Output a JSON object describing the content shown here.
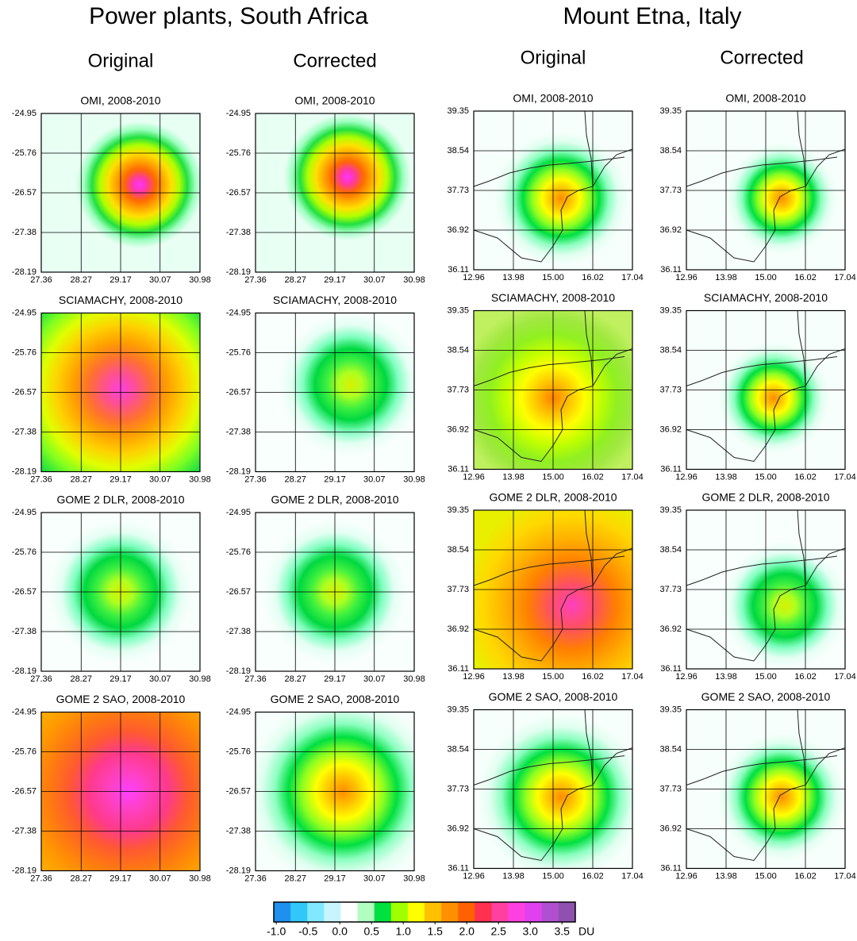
{
  "groups": [
    {
      "title": "Power plants, South Africa",
      "yticks": [
        -24.95,
        -25.76,
        -26.57,
        -27.38,
        -28.19
      ],
      "xticks": [
        27.36,
        28.27,
        29.17,
        30.07,
        30.98
      ],
      "columns": [
        {
          "heading": "Original",
          "panels": [
            "OMI, 2008-2010",
            "SCIAMACHY, 2008-2010",
            "GOME 2 DLR, 2008-2010",
            "GOME 2 SAO, 2008-2010"
          ]
        },
        {
          "heading": "Corrected",
          "panels": [
            "OMI, 2008-2010",
            "SCIAMACHY, 2008-2010",
            "GOME 2 DLR, 2008-2010",
            "GOME 2 SAO, 2008-2010"
          ]
        }
      ]
    },
    {
      "title": "Mount Etna, Italy",
      "yticks": [
        39.35,
        38.54,
        37.73,
        36.92,
        36.11
      ],
      "xticks": [
        12.96,
        13.98,
        {
          "value": 15,
          "label": "15.00"
        },
        16.02,
        17.04
      ],
      "columns": [
        {
          "heading": "Original",
          "panels": [
            "OMI, 2008-2010",
            "SCIAMACHY, 2008-2010",
            "GOME 2 DLR, 2008-2010",
            "GOME 2 SAO, 2008-2010"
          ]
        },
        {
          "heading": "Corrected",
          "panels": [
            "OMI, 2008-2010",
            "SCIAMACHY, 2008-2010",
            "GOME 2 DLR, 2008-2010",
            "GOME 2 SAO, 2008-2010"
          ]
        }
      ]
    }
  ],
  "colorbar": {
    "range": [
      -1.04,
      3.71
    ],
    "ticks": [
      {
        "value": -1,
        "label": "-1.0"
      },
      -0.5,
      {
        "value": 0,
        "label": "0.0"
      },
      0.5,
      {
        "value": 1,
        "label": "1.0"
      },
      1.5,
      {
        "value": 2,
        "label": "2.0"
      },
      2.5,
      {
        "value": 3,
        "label": "3.0"
      },
      3.5
    ],
    "unit": "DU",
    "colors": [
      "#1e90f0",
      "#30c8f8",
      "#80e8ff",
      "#c8f4ff",
      "#ffffff",
      "#b0ffc0",
      "#00e040",
      "#a0ff00",
      "#ffff00",
      "#ffc000",
      "#ff9000",
      "#ff6000",
      "#ff3050",
      "#ff40a0",
      "#ff40e0",
      "#e040f0",
      "#b050d0",
      "#9050b0"
    ]
  }
}
